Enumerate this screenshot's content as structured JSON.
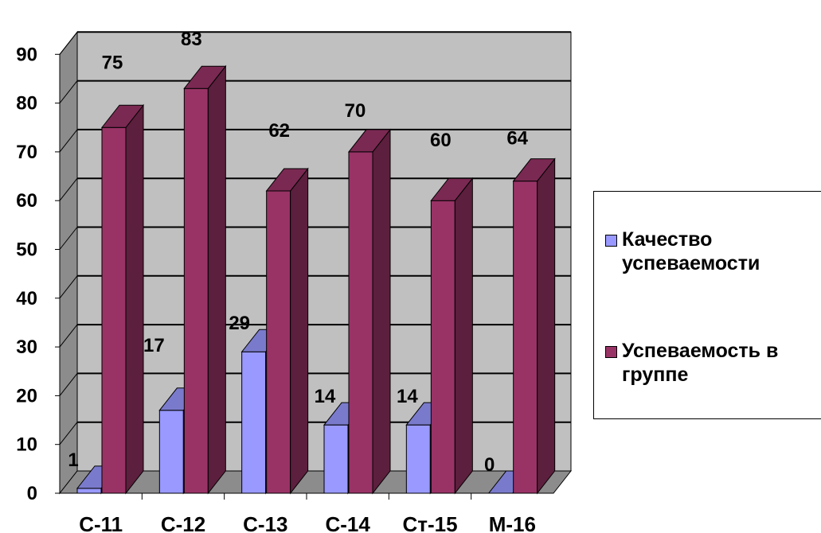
{
  "chart_data": {
    "type": "bar",
    "categories": [
      "С-11",
      "С-12",
      "С-13",
      "С-14",
      "Ст-15",
      "М-16"
    ],
    "series": [
      {
        "name": "Качество успеваемости",
        "values": [
          1,
          17,
          29,
          14,
          14,
          0
        ],
        "color": "#9999FF"
      },
      {
        "name": "Успеваемость в группе",
        "values": [
          75,
          83,
          62,
          70,
          60,
          64
        ],
        "color": "#993366"
      }
    ],
    "yticks": [
      0,
      10,
      20,
      30,
      40,
      50,
      60,
      70,
      80,
      90
    ],
    "ylim": [
      0,
      90
    ],
    "title": "",
    "xlabel": "",
    "ylabel": "",
    "grid": true,
    "legend_position": "right",
    "three_d": true,
    "wall_color": "#C0C0C0"
  },
  "legend": {
    "items": [
      {
        "label": "Качество успеваемости",
        "color": "#9999FF"
      },
      {
        "label": "Успеваемость в группе",
        "color": "#993366"
      }
    ]
  }
}
